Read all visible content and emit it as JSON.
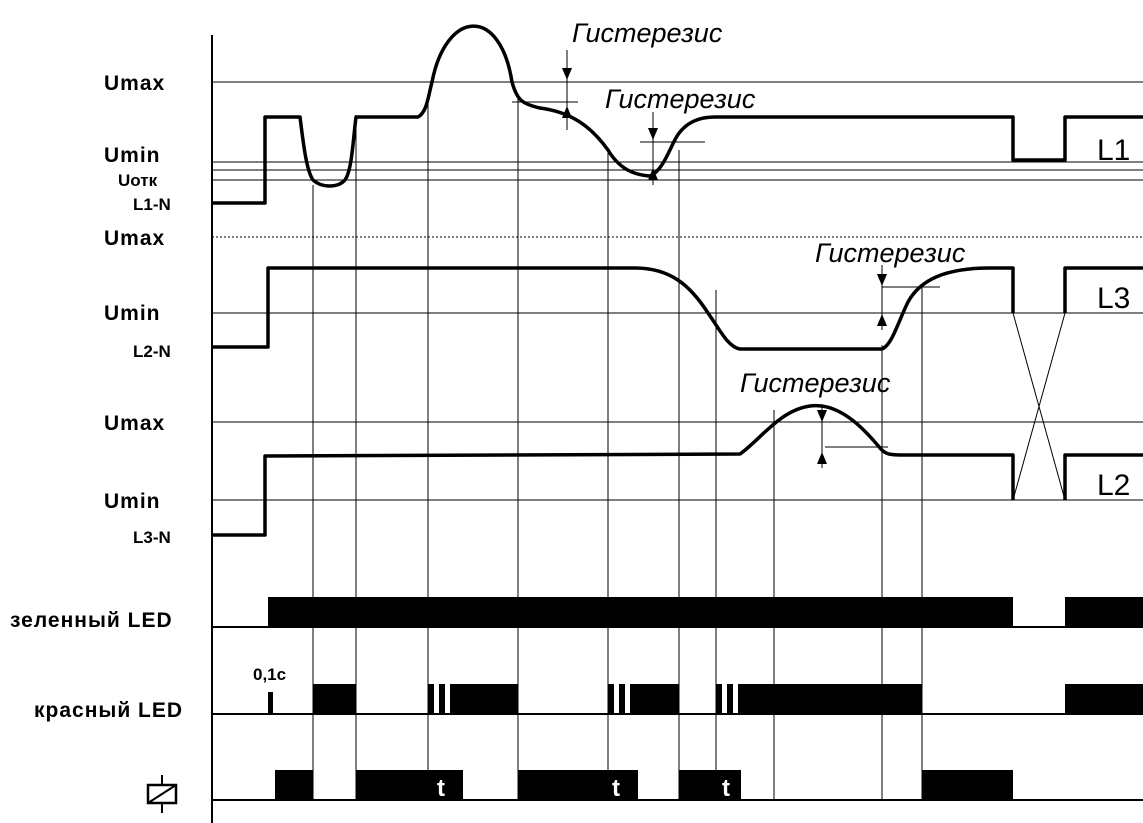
{
  "levels": {
    "umax": "Umax",
    "umin": "Umin",
    "uotk": "Uотк"
  },
  "channels": {
    "l1n": "L1-N",
    "l2n": "L2-N",
    "l3n": "L3-N"
  },
  "phases": {
    "l1": "L1",
    "l2": "L2",
    "l3": "L3"
  },
  "hysteresis": "Гистерезис",
  "leds": {
    "green": "зеленный LED",
    "red": "красный LED"
  },
  "pulse_label": "0,1с",
  "delay_mark": "t",
  "relay_icon": "relay-coil-icon"
}
